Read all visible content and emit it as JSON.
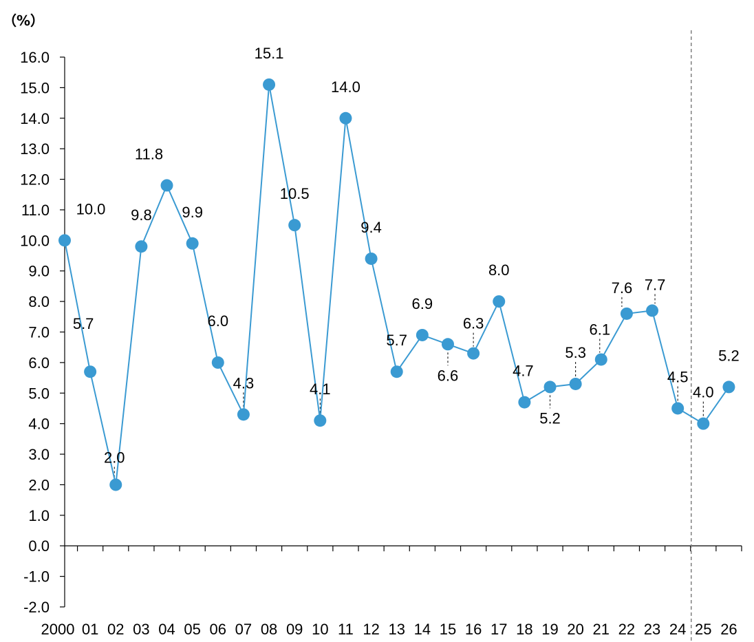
{
  "chart_data": {
    "type": "line",
    "unit_label": "（%）",
    "title": "",
    "xlabel": "",
    "ylabel": "",
    "ylim": [
      -2.0,
      16.0
    ],
    "y_ticks": [
      "16.0",
      "15.0",
      "14.0",
      "13.0",
      "12.0",
      "11.0",
      "10.0",
      "9.0",
      "8.0",
      "7.0",
      "6.0",
      "5.0",
      "4.0",
      "3.0",
      "2.0",
      "1.0",
      "0.0",
      "-1.0",
      "-2.0"
    ],
    "categories": [
      "2000",
      "01",
      "02",
      "03",
      "04",
      "05",
      "06",
      "07",
      "08",
      "09",
      "10",
      "11",
      "12",
      "13",
      "14",
      "15",
      "16",
      "17",
      "18",
      "19",
      "20",
      "21",
      "22",
      "23",
      "24",
      "25",
      "26"
    ],
    "series": [
      {
        "values": [
          10.0,
          5.7,
          2.0,
          9.8,
          11.8,
          9.9,
          6.0,
          4.3,
          15.1,
          10.5,
          4.1,
          14.0,
          9.4,
          5.7,
          6.9,
          6.6,
          6.3,
          8.0,
          4.7,
          5.2,
          5.3,
          6.1,
          7.6,
          7.7,
          4.5,
          4.0,
          5.2
        ],
        "labels": [
          "10.0",
          "5.7",
          "2.0",
          "9.8",
          "11.8",
          "9.9",
          "6.0",
          "4.3",
          "15.1",
          "10.5",
          "4.1",
          "14.0",
          "9.4",
          "5.7",
          "6.9",
          "6.6",
          "6.3",
          "8.0",
          "4.7",
          "5.2",
          "5.3",
          "6.1",
          "7.6",
          "7.7",
          "4.5",
          "4.0",
          "5.2"
        ],
        "color": "#3a9ad2"
      }
    ],
    "forecast_divider_after": "24",
    "grid": false,
    "legend": "none"
  }
}
